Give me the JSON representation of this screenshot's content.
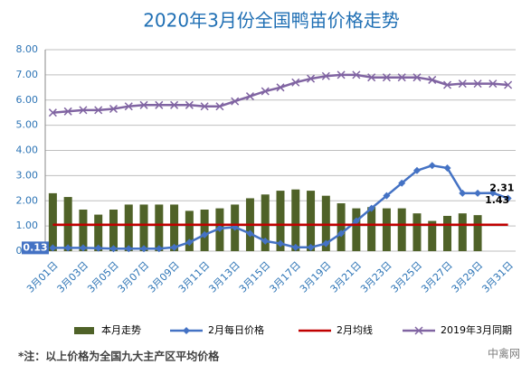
{
  "chart_data": {
    "type": "combo",
    "title": "2020年3月份全国鸭苗价格走势",
    "categories": [
      "3月01日",
      null,
      "3月03日",
      null,
      "3月05日",
      null,
      "3月07日",
      null,
      "3月09日",
      null,
      "3月11日",
      null,
      "3月13日",
      null,
      "3月15日",
      null,
      "3月17日",
      null,
      "3月19日",
      null,
      "3月21日",
      null,
      "3月23日",
      null,
      "3月25日",
      null,
      "3月27日",
      null,
      "3月29日",
      null,
      "3月31日"
    ],
    "series": [
      {
        "name": "本月走势",
        "type": "bar",
        "color": "#4f6228",
        "values": [
          2.3,
          2.15,
          1.65,
          1.45,
          1.65,
          1.85,
          1.85,
          1.85,
          1.85,
          1.6,
          1.65,
          1.7,
          1.85,
          2.1,
          2.25,
          2.4,
          2.45,
          2.4,
          2.2,
          1.9,
          1.7,
          1.75,
          1.7,
          1.7,
          1.5,
          1.2,
          1.4,
          1.5,
          1.43,
          null,
          null
        ],
        "value_labels": [
          null,
          null,
          null,
          null,
          null,
          null,
          null,
          null,
          null,
          null,
          null,
          null,
          null,
          null,
          null,
          null,
          null,
          null,
          null,
          null,
          null,
          null,
          null,
          null,
          null,
          null,
          null,
          null,
          "1.43",
          null,
          null
        ]
      },
      {
        "name": "2月每日价格",
        "type": "line",
        "marker": "diamond",
        "color": "#4472c4",
        "values": [
          0.13,
          0.13,
          0.13,
          0.12,
          0.1,
          0.1,
          0.1,
          0.1,
          0.15,
          0.35,
          0.65,
          0.9,
          0.95,
          0.7,
          0.4,
          0.3,
          0.15,
          0.15,
          0.3,
          0.7,
          1.2,
          1.7,
          2.2,
          2.7,
          3.2,
          3.4,
          3.3,
          2.3,
          2.3,
          2.31,
          2.1
        ],
        "value_labels": [
          "0.13",
          null,
          null,
          null,
          null,
          null,
          null,
          null,
          null,
          null,
          null,
          null,
          null,
          null,
          null,
          null,
          null,
          null,
          null,
          null,
          null,
          null,
          null,
          null,
          null,
          null,
          null,
          null,
          null,
          "2.31",
          null
        ]
      },
      {
        "name": "2月均线",
        "type": "line",
        "color": "#c00000",
        "values": [
          1.05,
          1.05,
          1.05,
          1.05,
          1.05,
          1.05,
          1.05,
          1.05,
          1.05,
          1.05,
          1.05,
          1.05,
          1.05,
          1.05,
          1.05,
          1.05,
          1.05,
          1.05,
          1.05,
          1.05,
          1.05,
          1.05,
          1.05,
          1.05,
          1.05,
          1.05,
          1.05,
          1.05,
          1.05,
          1.05,
          1.05
        ]
      },
      {
        "name": "2019年3月同期",
        "type": "line",
        "marker": "x",
        "color": "#8064a2",
        "values": [
          5.5,
          5.55,
          5.6,
          5.6,
          5.65,
          5.75,
          5.8,
          5.8,
          5.8,
          5.8,
          5.75,
          5.75,
          5.95,
          6.15,
          6.35,
          6.5,
          6.7,
          6.85,
          6.95,
          7.0,
          7.0,
          6.9,
          6.9,
          6.9,
          6.9,
          6.8,
          6.6,
          6.65,
          6.65,
          6.65,
          6.6
        ]
      }
    ],
    "ylim": [
      0,
      8
    ],
    "yticks": [
      {
        "value": 0,
        "label": "0.00"
      },
      {
        "value": 1,
        "label": "1.00"
      },
      {
        "value": 2,
        "label": "2.00"
      },
      {
        "value": 3,
        "label": "3.00"
      },
      {
        "value": 4,
        "label": "4.00"
      },
      {
        "value": 5,
        "label": "5.00"
      },
      {
        "value": 6,
        "label": "6.00"
      },
      {
        "value": 7,
        "label": "7.00"
      },
      {
        "value": 8,
        "label": "8.00"
      }
    ],
    "grid": true,
    "legend": "bottom",
    "note": "*注：以上价格为全国九大主产区平均价格",
    "watermark": "中禽网"
  }
}
